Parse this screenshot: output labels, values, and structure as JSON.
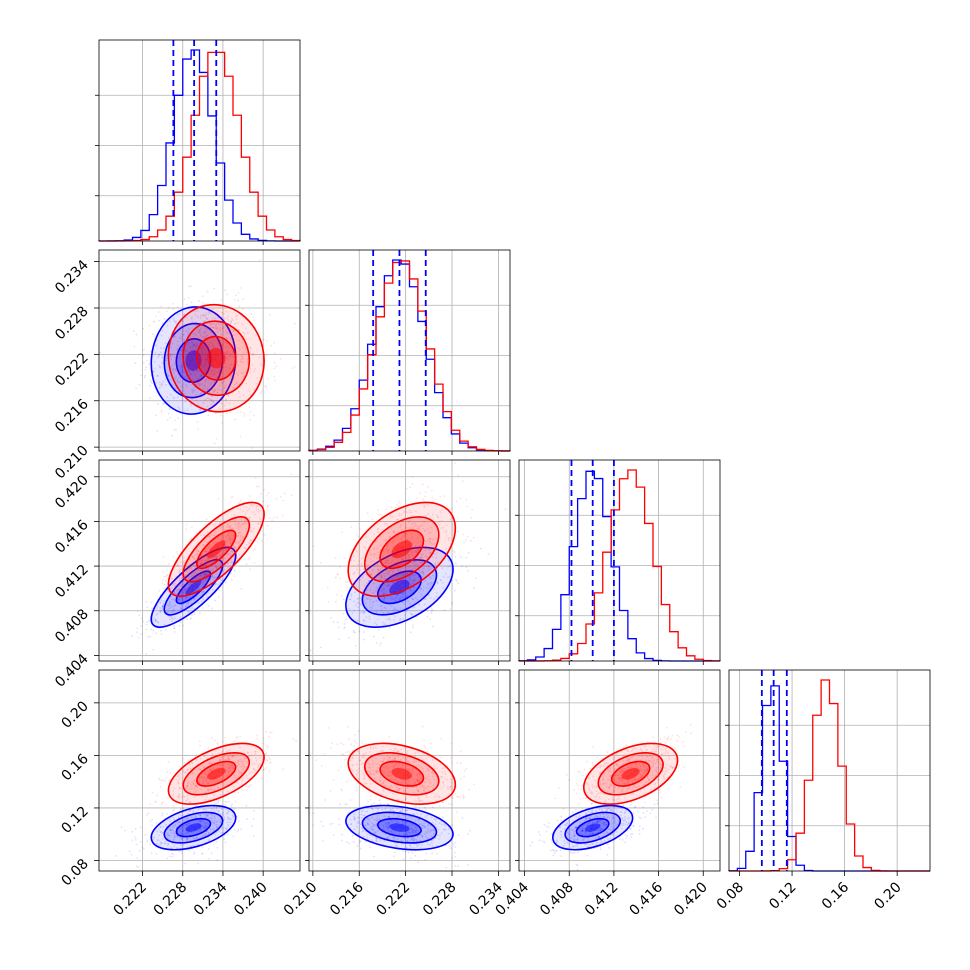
{
  "chart_data": {
    "type": "corner",
    "colors": {
      "blue": "#0000ff",
      "red": "#ff0000",
      "grid": "#b0b0b0"
    },
    "series": [
      {
        "color": "#0000ff",
        "mean": [
          0.2296,
          0.2212,
          0.4101,
          0.105
        ],
        "sd": [
          0.003,
          0.0033,
          0.0017,
          0.008
        ],
        "corr": {
          "1-0": 0.05,
          "2-0": 0.8,
          "2-1": 0.45,
          "3-0": 0.45,
          "3-1": -0.3,
          "3-2": 0.45
        }
      },
      {
        "color": "#ff0000",
        "mean": [
          0.233,
          0.2215,
          0.4135,
          0.146
        ],
        "sd": [
          0.0034,
          0.0033,
          0.002,
          0.011
        ],
        "corr": {
          "1-0": -0.05,
          "2-0": 0.75,
          "2-1": 0.45,
          "3-0": 0.55,
          "3-1": -0.35,
          "3-2": 0.45
        }
      }
    ],
    "quantile_lines": [
      [
        0.2266,
        0.2297,
        0.233
      ],
      [
        0.2178,
        0.2212,
        0.2246
      ],
      [
        0.4082,
        0.4101,
        0.412
      ],
      [
        0.097,
        0.106,
        0.116
      ]
    ],
    "ranges": [
      [
        0.2155,
        0.2455
      ],
      [
        0.2095,
        0.2355
      ],
      [
        0.4035,
        0.4215
      ],
      [
        0.072,
        0.225
      ]
    ],
    "ticks": [
      {
        "values": [
          0.222,
          0.228,
          0.234,
          0.24
        ],
        "labels": [
          "0.222",
          "0.228",
          "0.234",
          "0.240"
        ]
      },
      {
        "values": [
          0.21,
          0.216,
          0.222,
          0.228,
          0.234
        ],
        "labels": [
          "0.210",
          "0.216",
          "0.222",
          "0.228",
          "0.234"
        ]
      },
      {
        "values": [
          0.404,
          0.408,
          0.412,
          0.416,
          0.42
        ],
        "labels": [
          "0.404",
          "0.408",
          "0.412",
          "0.416",
          "0.420"
        ]
      },
      {
        "values": [
          0.08,
          0.12,
          0.16,
          0.2
        ],
        "labels": [
          "0.08",
          "0.12",
          "0.16",
          "0.20"
        ]
      }
    ],
    "grid": true
  }
}
